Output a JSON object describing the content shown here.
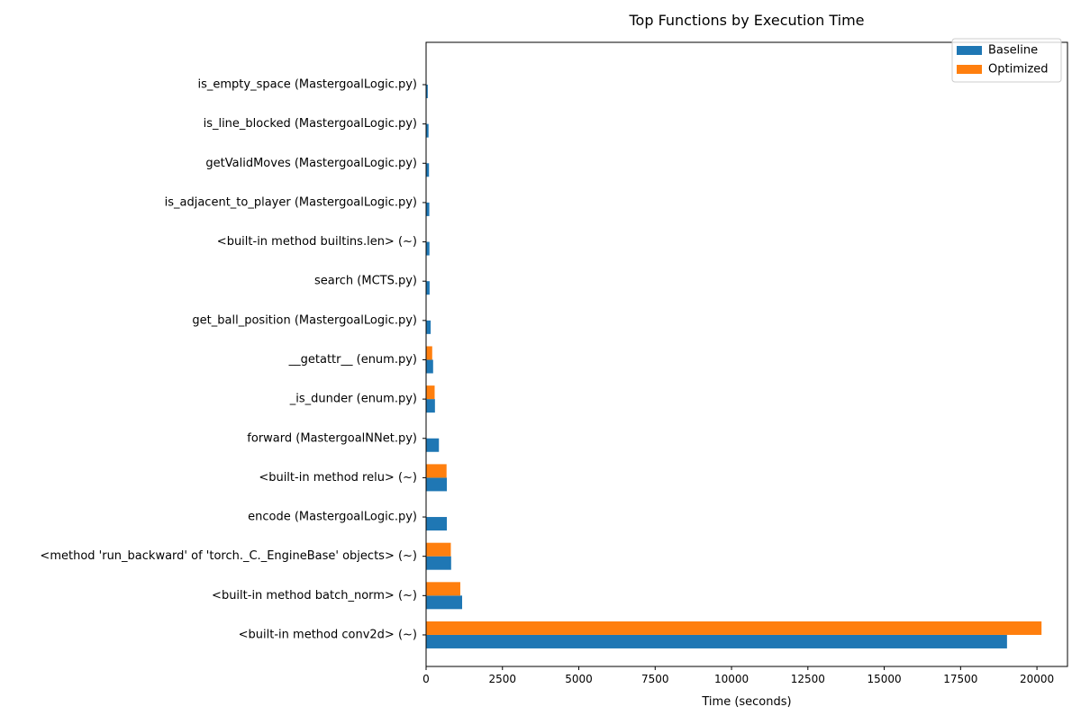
{
  "chart_data": {
    "type": "bar",
    "orientation": "horizontal",
    "title": "Top Functions by Execution Time",
    "xlabel": "Time (seconds)",
    "ylabel": "",
    "xlim": [
      0,
      21000
    ],
    "xticks": [
      0,
      2500,
      5000,
      7500,
      10000,
      12500,
      15000,
      17500,
      20000
    ],
    "grid": false,
    "legend_position": "top-right",
    "categories": [
      "is_empty_space (MastergoalLogic.py)",
      "is_line_blocked (MastergoalLogic.py)",
      "getValidMoves (MastergoalLogic.py)",
      "is_adjacent_to_player (MastergoalLogic.py)",
      "<built-in method builtins.len> (~)",
      "search (MCTS.py)",
      "get_ball_position (MastergoalLogic.py)",
      "__getattr__ (enum.py)",
      "_is_dunder (enum.py)",
      "forward (MastergoalNNet.py)",
      "<built-in method relu> (~)",
      "encode (MastergoalLogic.py)",
      "<method 'run_backward' of 'torch._C._EngineBase' objects> (~)",
      "<built-in method batch_norm> (~)",
      "<built-in method conv2d> (~)"
    ],
    "series": [
      {
        "name": "Baseline",
        "color": "#1f77b4",
        "values": [
          55,
          80,
          95,
          105,
          110,
          115,
          150,
          230,
          290,
          420,
          680,
          680,
          820,
          1180,
          19020
        ]
      },
      {
        "name": "Optimized",
        "color": "#ff7f0e",
        "values": [
          0,
          0,
          0,
          0,
          0,
          0,
          0,
          200,
          280,
          0,
          670,
          0,
          810,
          1120,
          20150
        ]
      }
    ]
  }
}
